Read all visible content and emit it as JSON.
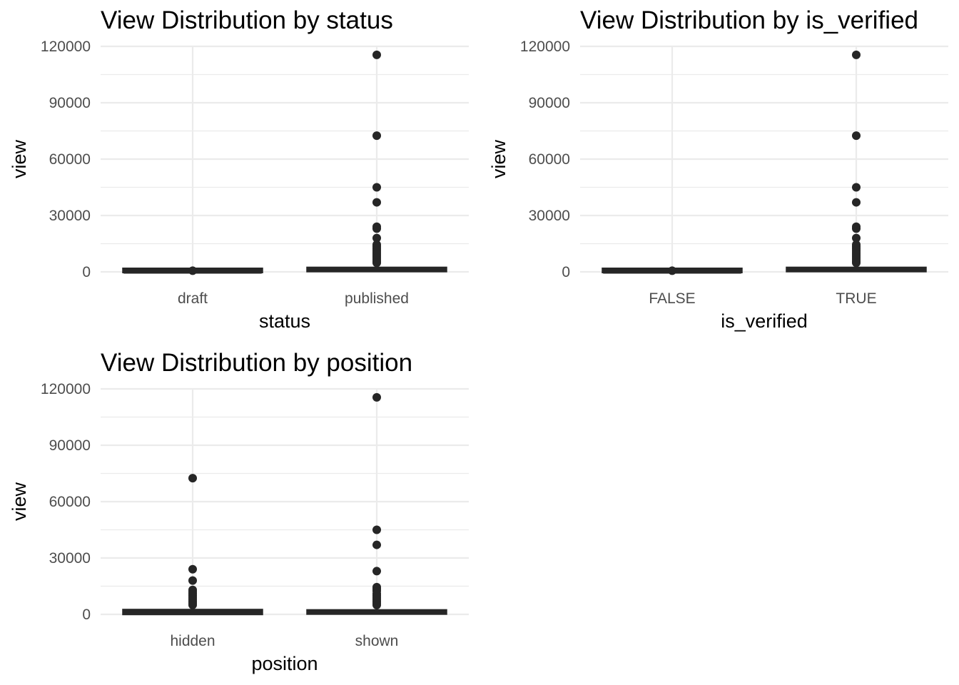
{
  "colors": {
    "mark": "#262626",
    "grid": "#ebebeb",
    "tick_text": "#4d4d4d"
  },
  "chart_data": [
    {
      "type": "box",
      "title": "View Distribution by status",
      "xlabel": "status",
      "ylabel": "view",
      "ylim": [
        0,
        120000
      ],
      "yticks": [
        "0",
        "30000",
        "60000",
        "90000",
        "120000"
      ],
      "categories": [
        "draft",
        "published"
      ],
      "boxes": [
        {
          "category": "draft",
          "min": 0,
          "q1": 0,
          "median": 0,
          "q3": 150,
          "max": 400,
          "outliers": [
            600
          ]
        },
        {
          "category": "published",
          "min": 0,
          "q1": 500,
          "median": 1200,
          "q3": 2000,
          "max": 4500,
          "outliers": [
            115500,
            72500,
            45000,
            37000,
            24000,
            23000,
            18000,
            14500,
            13500,
            12500,
            11500,
            10500,
            9500,
            8500,
            7500,
            6500,
            5500,
            4800
          ]
        }
      ]
    },
    {
      "type": "box",
      "title": "View Distribution by is_verified",
      "xlabel": "is_verified",
      "ylabel": "view",
      "ylim": [
        0,
        120000
      ],
      "yticks": [
        "0",
        "30000",
        "60000",
        "90000",
        "120000"
      ],
      "categories": [
        "FALSE",
        "TRUE"
      ],
      "boxes": [
        {
          "category": "FALSE",
          "min": 0,
          "q1": 0,
          "median": 0,
          "q3": 150,
          "max": 400,
          "outliers": [
            600
          ]
        },
        {
          "category": "TRUE",
          "min": 0,
          "q1": 500,
          "median": 1200,
          "q3": 2000,
          "max": 4500,
          "outliers": [
            115500,
            72500,
            45000,
            37000,
            24000,
            23000,
            18000,
            14500,
            13500,
            12500,
            11500,
            10500,
            9500,
            8500,
            7500,
            6500,
            5500,
            4800
          ]
        }
      ]
    },
    {
      "type": "box",
      "title": "View Distribution by position",
      "xlabel": "position",
      "ylabel": "view",
      "ylim": [
        0,
        120000
      ],
      "yticks": [
        "0",
        "30000",
        "60000",
        "90000",
        "120000"
      ],
      "categories": [
        "hidden",
        "shown"
      ],
      "boxes": [
        {
          "category": "hidden",
          "min": 0,
          "q1": 300,
          "median": 900,
          "q3": 2200,
          "max": 4500,
          "outliers": [
            72500,
            24000,
            18000,
            13000,
            12000,
            11000,
            10000,
            9000,
            8000,
            7000,
            6000,
            5000
          ]
        },
        {
          "category": "shown",
          "min": 0,
          "q1": 500,
          "median": 1200,
          "q3": 1900,
          "max": 4500,
          "outliers": [
            115500,
            45000,
            37000,
            23000,
            14500,
            13500,
            12500,
            11000,
            10000,
            9000,
            8000,
            7000,
            6000,
            5000
          ]
        }
      ]
    }
  ]
}
